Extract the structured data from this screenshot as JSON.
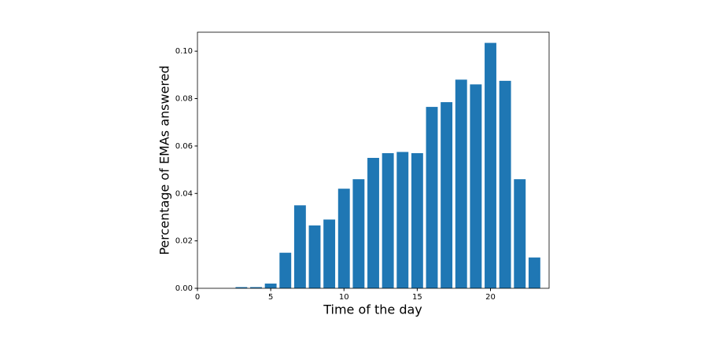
{
  "chart_data": {
    "type": "bar",
    "x": [
      0,
      1,
      2,
      3,
      4,
      5,
      6,
      7,
      8,
      9,
      10,
      11,
      12,
      13,
      14,
      15,
      16,
      17,
      18,
      19,
      20,
      21,
      22,
      23
    ],
    "values": [
      0,
      0,
      0,
      0.0005,
      0.0005,
      0.002,
      0.015,
      0.035,
      0.0265,
      0.029,
      0.042,
      0.046,
      0.055,
      0.057,
      0.0575,
      0.057,
      0.0765,
      0.0785,
      0.088,
      0.086,
      0.1035,
      0.0875,
      0.046,
      0.013
    ],
    "color": "#1f77b4",
    "xlabel": "Time of the day",
    "ylabel": "Percentage of EMAs answered",
    "xlim": [
      0,
      24
    ],
    "xticks": [
      0,
      5,
      10,
      15,
      20
    ],
    "ylim": [
      0,
      0.108
    ],
    "yticks": [
      {
        "value": 0,
        "label": "0.00"
      },
      {
        "value": 0.02,
        "label": "0.02"
      },
      {
        "value": 0.04,
        "label": "0.04"
      },
      {
        "value": 0.06,
        "label": "0.06"
      },
      {
        "value": 0.08,
        "label": "0.08"
      },
      {
        "value": 0.1,
        "label": "0.10"
      }
    ],
    "bar_width": 0.8
  }
}
